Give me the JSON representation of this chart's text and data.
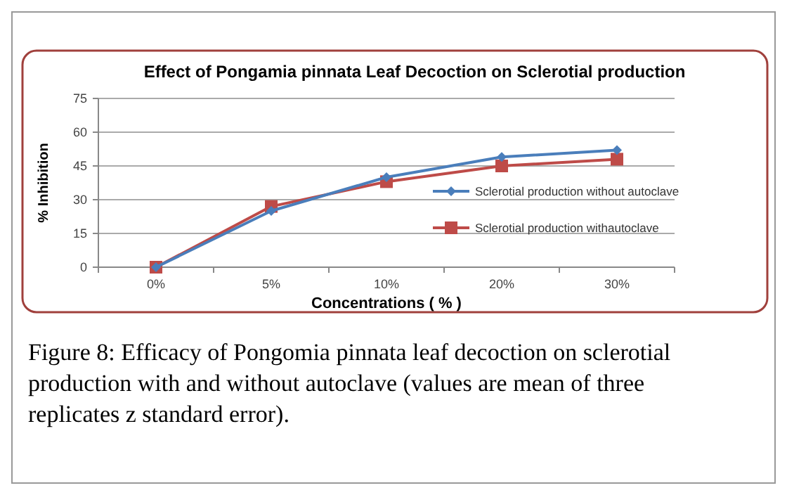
{
  "chart_data": {
    "type": "line",
    "title": "Effect of Pongamia pinnata Leaf Decoction on Sclerotial production",
    "xlabel": "Concentrations ( % )",
    "ylabel": "% Inhibition",
    "categories": [
      "0%",
      "5%",
      "10%",
      "20%",
      "30%"
    ],
    "series": [
      {
        "name": "Sclerotial production without autoclave",
        "color": "#4a7ebb",
        "marker": "diamond",
        "values": [
          0,
          25,
          40,
          49,
          52
        ]
      },
      {
        "name": "Sclerotial production withautoclave",
        "color": "#be4b48",
        "marker": "square",
        "values": [
          0,
          27,
          38,
          45,
          48
        ]
      }
    ],
    "ylim": [
      0,
      75
    ],
    "yticks": [
      0,
      15,
      30,
      45,
      60,
      75
    ],
    "grid": "y",
    "legend": "right",
    "annotations": [
      "Figure 8: Efficacy of Pongomia pinnata leaf decoction on sclerotial production with and without autoclave (values are mean of three replicates z standard error)."
    ]
  }
}
